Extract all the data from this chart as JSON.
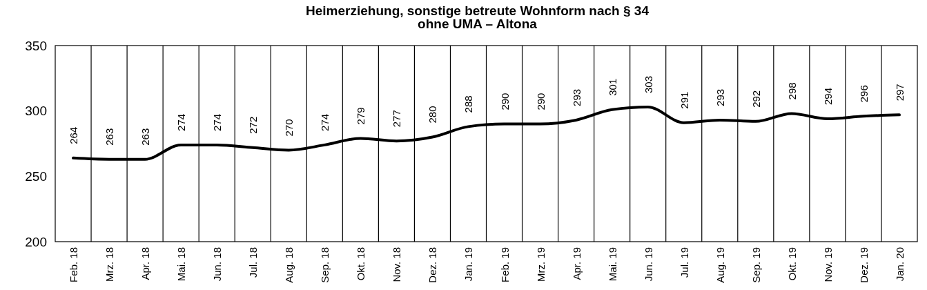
{
  "chart_data": {
    "type": "line",
    "title": "Heimerziehung, sonstige betreute Wohnform nach § 34\nohne UMA – Altona",
    "categories": [
      "Feb. 18",
      "Mrz. 18",
      "Apr. 18",
      "Mai. 18",
      "Jun. 18",
      "Jul. 18",
      "Aug. 18",
      "Sep. 18",
      "Okt. 18",
      "Nov. 18",
      "Dez. 18",
      "Jan. 19",
      "Feb. 19",
      "Mrz. 19",
      "Apr. 19",
      "Mai. 19",
      "Jun. 19",
      "Jul. 19",
      "Aug. 19",
      "Sep. 19",
      "Okt. 19",
      "Nov. 19",
      "Dez. 19",
      "Jan. 20"
    ],
    "series": [
      {
        "color": "#000000",
        "values": [
          264,
          263,
          263,
          274,
          274,
          272,
          270,
          274,
          279,
          277,
          280,
          288,
          290,
          290,
          293,
          301,
          303,
          291,
          293,
          292,
          298,
          294,
          296,
          297
        ]
      }
    ],
    "ylim": [
      200,
      350
    ],
    "yticks": [
      200,
      250,
      300,
      350
    ],
    "grid": "x",
    "data_labels": true,
    "marker": "none",
    "line_style": "solid"
  }
}
